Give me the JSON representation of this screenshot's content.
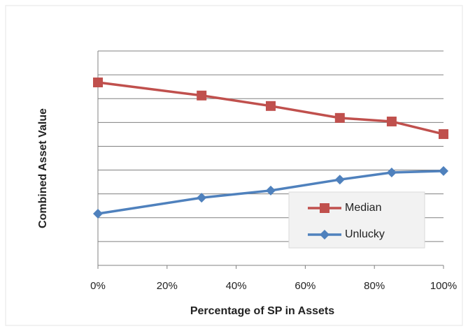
{
  "chart_data": {
    "type": "line",
    "x_label": "Percentage of SP in Assets",
    "y_label": "Combined Asset Value",
    "x": [
      0,
      30,
      50,
      70,
      85,
      100
    ],
    "series": [
      {
        "name": "Median",
        "color": "#c0504d",
        "marker": "square",
        "values": [
          7.68,
          7.13,
          6.69,
          6.19,
          6.04,
          5.51
        ]
      },
      {
        "name": "Unlucky",
        "color": "#4f81bd",
        "marker": "diamond",
        "values": [
          2.17,
          2.84,
          3.14,
          3.6,
          3.9,
          3.96
        ]
      }
    ],
    "xlim": [
      0,
      100
    ],
    "xticks": [
      {
        "value": 0,
        "label": "0%"
      },
      {
        "value": 20,
        "label": "20%"
      },
      {
        "value": 40,
        "label": "40%"
      },
      {
        "value": 60,
        "label": "60%"
      },
      {
        "value": 80,
        "label": "80%"
      },
      {
        "value": 100,
        "label": "100%"
      }
    ],
    "ylim": [
      0,
      9
    ],
    "yticks": [
      0,
      1,
      2,
      3,
      4,
      5,
      6,
      7,
      8,
      9
    ],
    "grid": true
  }
}
